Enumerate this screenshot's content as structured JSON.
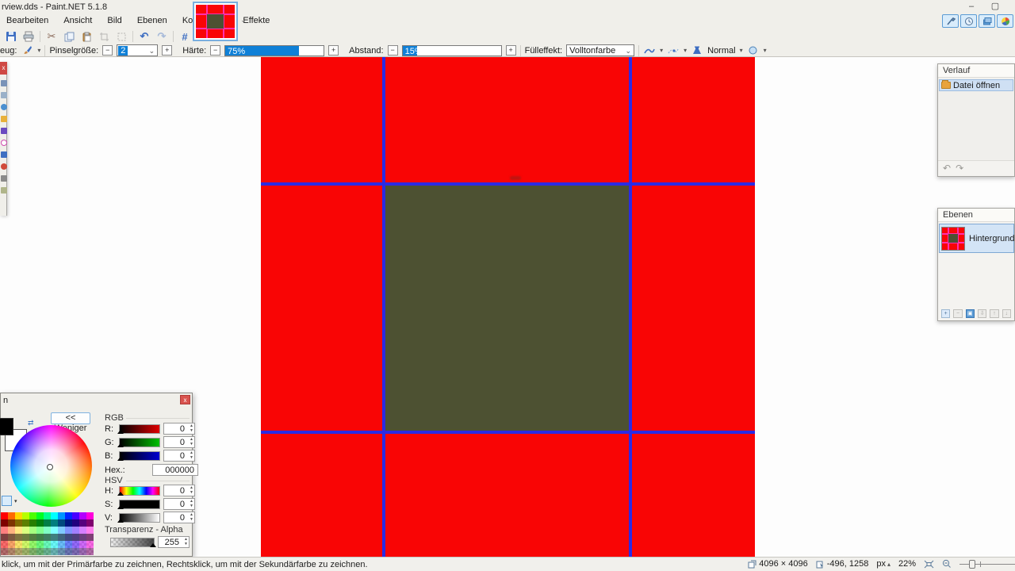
{
  "titlebar": {
    "title": "rview.dds - Paint.NET 5.1.8",
    "minimize": "–",
    "maximize": "▢"
  },
  "menubar": {
    "items": [
      "Bearbeiten",
      "Ansicht",
      "Bild",
      "Ebenen",
      "Korrekturen",
      "Effekte"
    ]
  },
  "icon_glyphs": {
    "cut": "✂",
    "undo": "↶",
    "redo": "↷",
    "grid": "#",
    "swap": "⇄",
    "chevron": "▾",
    "combo_chevron": "⌄",
    "minus": "−",
    "plus": "+",
    "close": "x"
  },
  "options": {
    "tool_label": "eug:",
    "brush_size_label": "Pinselgröße:",
    "brush_size_value": "2",
    "hardness_label": "Härte:",
    "hardness_value": "75%",
    "hardness_pct": 75,
    "spacing_label": "Abstand:",
    "spacing_value": "15%",
    "spacing_pct": 15,
    "fill_label": "Fülleffekt:",
    "fill_value": "Volltonfarbe",
    "blend_mode": "Normal"
  },
  "history": {
    "title": "Verlauf",
    "items": [
      {
        "label": "Datei öffnen"
      }
    ]
  },
  "layers": {
    "title": "Ebenen",
    "items": [
      {
        "label": "Hintergrund"
      }
    ]
  },
  "colors_window": {
    "title_fragment": "n",
    "less_button": "<< Weniger",
    "rgb_label": "RGB",
    "r_label": "R:",
    "r_value": "0",
    "g_label": "G:",
    "g_value": "0",
    "b_label": "B:",
    "b_value": "0",
    "hex_label": "Hex.:",
    "hex_value": "000000",
    "hsv_label": "HSV",
    "h_label": "H:",
    "h_value": "0",
    "s_label": "S:",
    "s_value": "0",
    "v_label": "V:",
    "v_value": "0",
    "alpha_label": "Transparenz - Alpha",
    "alpha_value": "255",
    "palette_rows": [
      [
        "#FF0000",
        "#FF6A00",
        "#FFD800",
        "#B6FF00",
        "#4CFF00",
        "#00FF21",
        "#00FF90",
        "#00FFFF",
        "#0094FF",
        "#0026FF",
        "#4800FF",
        "#B200FF",
        "#FF00DC"
      ],
      [
        "#7F0000",
        "#7F3300",
        "#7F6A00",
        "#5B7F00",
        "#267F00",
        "#007F0E",
        "#007F46",
        "#007F7F",
        "#00497F",
        "#00137F",
        "#21007F",
        "#57007F",
        "#7F006E"
      ],
      [
        "#FF7F7F",
        "#FFB27F",
        "#FFE97F",
        "#DAFF7F",
        "#A5FF7F",
        "#7FFF8E",
        "#7FFFC5",
        "#7FFFFF",
        "#7FC9FF",
        "#7F92FF",
        "#A17FFF",
        "#D67FFF",
        "#FF7FED"
      ],
      [
        "#7F3F3F",
        "#7F593F",
        "#7F743F",
        "#6D7F3F",
        "#527F3F",
        "#3F7F47",
        "#3F7F62",
        "#3F7F7F",
        "#3F647F",
        "#3F497F",
        "#503F7F",
        "#6B3F7F",
        "#7F3F76"
      ],
      [
        "#FF0000",
        "#FF6A00",
        "#FFD800",
        "#B6FF00",
        "#4CFF00",
        "#00FF21",
        "#00FF90",
        "#00FFFF",
        "#0094FF",
        "#0026FF",
        "#4800FF",
        "#B200FF",
        "#FF00DC"
      ],
      [
        "#7F0000",
        "#7F3300",
        "#7F6A00",
        "#5B7F00",
        "#267F00",
        "#007F0E",
        "#007F46",
        "#007F7F",
        "#00497F",
        "#00137F",
        "#21007F",
        "#57007F",
        "#7F006E"
      ]
    ],
    "alpha_row_indices": [
      4,
      5
    ]
  },
  "statusbar": {
    "hint": "klick, um mit der Primärfarbe zu zeichnen, Rechtsklick, um mit der Sekundärfarbe zu zeichnen.",
    "image_size": "4096 × 4096",
    "cursor_position": "-496, 1258",
    "unit": "px",
    "zoom_level": "22%"
  },
  "canvas_colors": {
    "red": "#f90505",
    "olive": "#4d5132",
    "guide_blue": "#2b2be4",
    "accent_blue": "#0f80d7"
  }
}
